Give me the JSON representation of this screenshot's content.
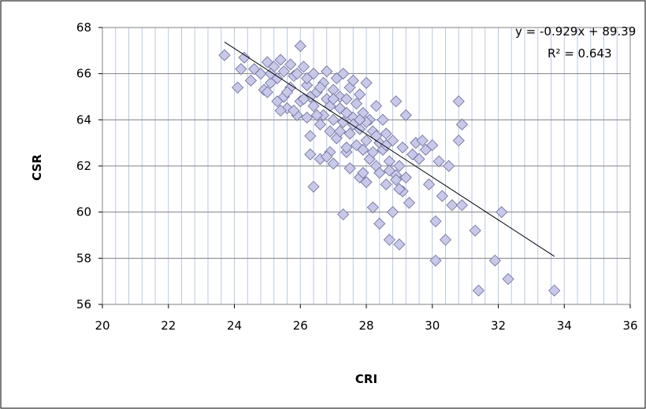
{
  "chart_data": {
    "type": "scatter",
    "xlabel": "CRI",
    "ylabel": "CSR",
    "xlim": [
      20,
      36
    ],
    "ylim": [
      56,
      68
    ],
    "x_ticks": [
      "20",
      "22",
      "24",
      "26",
      "28",
      "30",
      "32",
      "34",
      "36"
    ],
    "y_ticks": [
      "56",
      "58",
      "60",
      "62",
      "64",
      "66",
      "68"
    ],
    "grid": {
      "vertical_minor_step": 0.4,
      "horizontal_major_step": 2
    },
    "marker_color": "#c8c8e8",
    "marker_edge": "#6a6a9a",
    "trendline": {
      "slope": -0.929,
      "intercept": 89.39,
      "x_range": [
        23.7,
        33.7
      ],
      "equation": "y = -0.929x + 89.39",
      "r_squared": "R² = 0.643"
    },
    "points": [
      [
        23.7,
        66.8
      ],
      [
        24.1,
        65.4
      ],
      [
        24.3,
        66.7
      ],
      [
        24.2,
        66.2
      ],
      [
        24.5,
        65.7
      ],
      [
        24.8,
        66.0
      ],
      [
        24.9,
        65.3
      ],
      [
        25.0,
        66.5
      ],
      [
        25.1,
        65.6
      ],
      [
        25.2,
        66.3
      ],
      [
        25.3,
        65.8
      ],
      [
        25.4,
        66.6
      ],
      [
        25.5,
        66.1
      ],
      [
        25.5,
        65.0
      ],
      [
        25.6,
        64.5
      ],
      [
        25.7,
        65.4
      ],
      [
        25.8,
        65.9
      ],
      [
        25.9,
        66.0
      ],
      [
        26.0,
        67.2
      ],
      [
        26.0,
        64.8
      ],
      [
        25.9,
        64.2
      ],
      [
        26.1,
        66.3
      ],
      [
        26.2,
        65.5
      ],
      [
        26.2,
        64.1
      ],
      [
        26.3,
        63.3
      ],
      [
        26.3,
        65.0
      ],
      [
        26.4,
        64.6
      ],
      [
        26.4,
        66.0
      ],
      [
        26.5,
        65.2
      ],
      [
        26.6,
        63.8
      ],
      [
        26.6,
        62.3
      ],
      [
        26.4,
        61.1
      ],
      [
        26.7,
        64.2
      ],
      [
        26.7,
        65.6
      ],
      [
        26.8,
        66.1
      ],
      [
        26.8,
        64.9
      ],
      [
        26.9,
        63.5
      ],
      [
        26.9,
        62.6
      ],
      [
        27.0,
        65.3
      ],
      [
        27.0,
        64.0
      ],
      [
        27.0,
        62.1
      ],
      [
        27.1,
        65.8
      ],
      [
        27.1,
        63.2
      ],
      [
        27.2,
        64.5
      ],
      [
        27.2,
        65.0
      ],
      [
        27.3,
        66.0
      ],
      [
        27.3,
        63.9
      ],
      [
        27.3,
        59.9
      ],
      [
        27.4,
        62.6
      ],
      [
        27.4,
        64.9
      ],
      [
        27.5,
        65.4
      ],
      [
        27.5,
        63.4
      ],
      [
        27.5,
        61.9
      ],
      [
        27.6,
        64.1
      ],
      [
        27.6,
        65.7
      ],
      [
        27.7,
        62.9
      ],
      [
        27.7,
        64.7
      ],
      [
        27.8,
        63.6
      ],
      [
        27.8,
        61.5
      ],
      [
        27.8,
        65.1
      ],
      [
        27.9,
        62.7
      ],
      [
        27.9,
        64.3
      ],
      [
        28.0,
        63.1
      ],
      [
        28.0,
        65.6
      ],
      [
        28.0,
        61.3
      ],
      [
        28.1,
        64.0
      ],
      [
        28.1,
        62.3
      ],
      [
        28.2,
        63.5
      ],
      [
        28.2,
        60.2
      ],
      [
        28.3,
        64.6
      ],
      [
        28.3,
        62.0
      ],
      [
        28.4,
        63.0
      ],
      [
        28.4,
        59.5
      ],
      [
        28.5,
        62.7
      ],
      [
        28.5,
        64.0
      ],
      [
        28.6,
        61.2
      ],
      [
        28.6,
        63.4
      ],
      [
        28.7,
        58.8
      ],
      [
        28.7,
        62.2
      ],
      [
        28.8,
        60.0
      ],
      [
        28.8,
        63.1
      ],
      [
        28.9,
        61.6
      ],
      [
        28.9,
        64.8
      ],
      [
        29.0,
        62.0
      ],
      [
        29.0,
        58.6
      ],
      [
        29.1,
        62.8
      ],
      [
        29.1,
        60.9
      ],
      [
        29.2,
        64.2
      ],
      [
        29.2,
        61.5
      ],
      [
        29.3,
        60.4
      ],
      [
        29.4,
        62.5
      ],
      [
        29.5,
        63.0
      ],
      [
        29.6,
        62.3
      ],
      [
        29.7,
        63.1
      ],
      [
        29.8,
        62.7
      ],
      [
        29.9,
        61.2
      ],
      [
        30.0,
        62.9
      ],
      [
        30.1,
        57.9
      ],
      [
        30.1,
        59.6
      ],
      [
        30.2,
        62.2
      ],
      [
        30.3,
        60.7
      ],
      [
        30.4,
        58.8
      ],
      [
        30.5,
        62.0
      ],
      [
        30.6,
        60.3
      ],
      [
        30.8,
        63.1
      ],
      [
        30.8,
        64.8
      ],
      [
        30.9,
        63.8
      ],
      [
        30.9,
        60.3
      ],
      [
        31.3,
        59.2
      ],
      [
        31.4,
        56.6
      ],
      [
        31.9,
        57.9
      ],
      [
        32.1,
        60.0
      ],
      [
        32.3,
        57.1
      ],
      [
        33.7,
        56.6
      ],
      [
        25.0,
        65.2
      ],
      [
        25.3,
        64.8
      ],
      [
        25.6,
        65.2
      ],
      [
        25.8,
        64.4
      ],
      [
        26.1,
        64.9
      ],
      [
        26.5,
        64.2
      ],
      [
        26.9,
        64.6
      ],
      [
        27.2,
        63.5
      ],
      [
        27.6,
        63.8
      ],
      [
        28.0,
        63.9
      ],
      [
        28.3,
        63.3
      ],
      [
        28.6,
        62.9
      ],
      [
        24.6,
        66.2
      ],
      [
        25.1,
        66.0
      ],
      [
        25.7,
        66.4
      ],
      [
        26.2,
        65.8
      ],
      [
        26.6,
        65.4
      ],
      [
        27.0,
        64.9
      ],
      [
        27.4,
        64.3
      ],
      [
        27.8,
        64.0
      ],
      [
        28.2,
        62.6
      ],
      [
        28.7,
        61.8
      ],
      [
        29.0,
        61.0
      ],
      [
        26.3,
        62.5
      ],
      [
        26.8,
        62.4
      ],
      [
        27.4,
        62.8
      ],
      [
        27.9,
        61.7
      ],
      [
        28.4,
        61.7
      ],
      [
        28.9,
        61.4
      ],
      [
        25.4,
        64.4
      ]
    ]
  }
}
